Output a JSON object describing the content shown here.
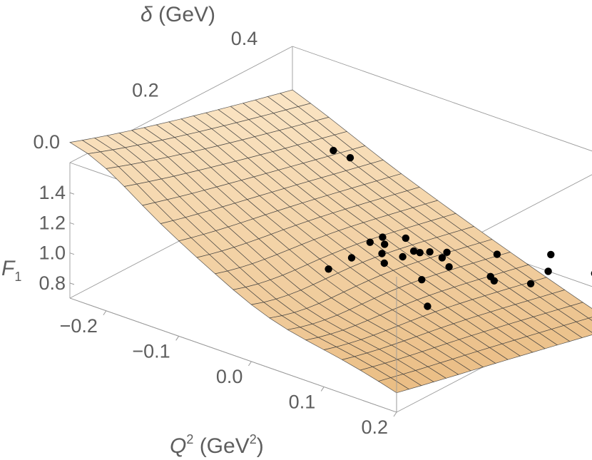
{
  "chart_data": {
    "type": "surface3d",
    "axes": {
      "x": {
        "label": {
          "main": "Q",
          "sup": "2",
          "unit_open": " (GeV",
          "unit_sup": "2",
          "unit_close": ")"
        },
        "range": [
          -0.25,
          0.2
        ],
        "ticks": [
          "−0.2",
          "−0.1",
          "0.0",
          "0.1",
          "0.2"
        ],
        "tick_values": [
          -0.2,
          -0.1,
          0.0,
          0.1,
          0.2
        ]
      },
      "y": {
        "label": {
          "main": "δ",
          "unit": " (GeV)"
        },
        "range": [
          0.0,
          0.45
        ],
        "ticks": [
          "0.0",
          "0.2",
          "0.4"
        ],
        "tick_values": [
          0.0,
          0.2,
          0.4
        ]
      },
      "z": {
        "label": {
          "main": "F",
          "sub": "1"
        },
        "range": [
          0.7,
          1.6
        ],
        "ticks": [
          "0.8",
          "1.0",
          "1.2",
          "1.4"
        ],
        "tick_values": [
          0.8,
          1.0,
          1.2,
          1.4
        ]
      }
    },
    "surface": {
      "color_light": "#fbe6c6",
      "color_dark": "#e8b87c",
      "mesh_color": "#3a3a3a"
    },
    "points": [
      {
        "x": -0.18,
        "y": 0.43,
        "z": 1.06
      },
      {
        "x": -0.15,
        "y": 0.42,
        "z": 1.08
      },
      {
        "x": -0.03,
        "y": 0.2,
        "z": 0.92
      },
      {
        "x": -0.005,
        "y": 0.21,
        "z": 1.02
      },
      {
        "x": 0.0,
        "y": 0.24,
        "z": 1.08
      },
      {
        "x": 0.007,
        "y": 0.255,
        "z": 1.1
      },
      {
        "x": 0.02,
        "y": 0.24,
        "z": 1.1
      },
      {
        "x": 0.03,
        "y": 0.22,
        "z": 1.09
      },
      {
        "x": 0.03,
        "y": 0.268,
        "z": 1.11
      },
      {
        "x": 0.04,
        "y": 0.21,
        "z": 1.06
      },
      {
        "x": 0.045,
        "y": 0.24,
        "z": 1.06
      },
      {
        "x": 0.05,
        "y": 0.255,
        "z": 1.08
      },
      {
        "x": 0.055,
        "y": 0.26,
        "z": 1.07
      },
      {
        "x": 0.055,
        "y": 0.28,
        "z": 1.04
      },
      {
        "x": 0.065,
        "y": 0.3,
        "z": 1.02
      },
      {
        "x": 0.072,
        "y": 0.28,
        "z": 1.03
      },
      {
        "x": 0.078,
        "y": 0.23,
        "z": 0.98
      },
      {
        "x": 0.085,
        "y": 0.275,
        "z": 1.0
      },
      {
        "x": 0.1,
        "y": 0.35,
        "z": 0.98
      },
      {
        "x": 0.12,
        "y": 0.18,
        "z": 0.96
      },
      {
        "x": 0.125,
        "y": 0.3,
        "z": 0.96
      },
      {
        "x": 0.13,
        "y": 0.3,
        "z": 0.94
      },
      {
        "x": 0.14,
        "y": 0.4,
        "z": 0.96
      },
      {
        "x": 0.16,
        "y": 0.33,
        "z": 0.92
      },
      {
        "x": 0.15,
        "y": 0.38,
        "z": 0.9
      },
      {
        "x": 0.18,
        "y": 0.43,
        "z": 0.85
      },
      {
        "x": 0.19,
        "y": 0.44,
        "z": 0.8
      }
    ],
    "box": true,
    "grid": false
  }
}
